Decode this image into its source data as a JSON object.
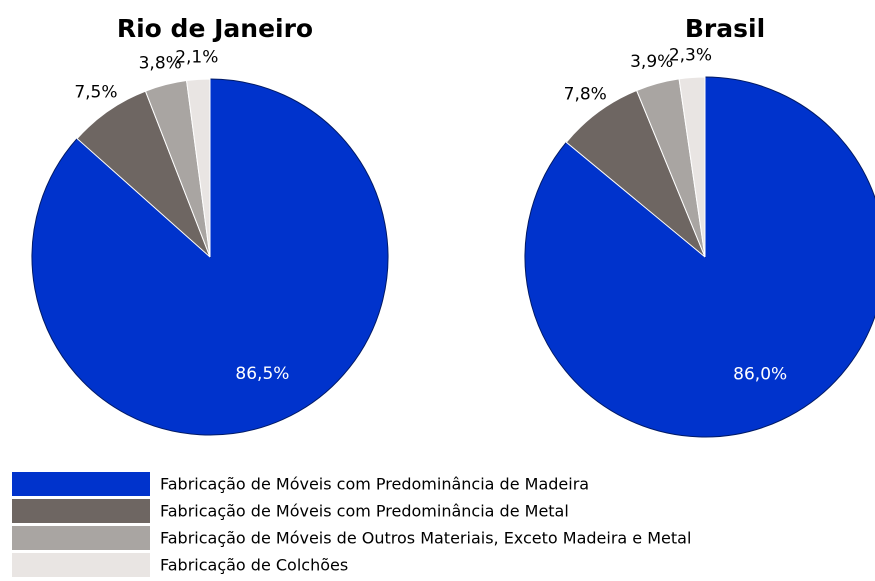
{
  "legend": {
    "categories": [
      "Fabricação de Móveis com Predominância de Madeira",
      "Fabricação de Móveis com Predominância de Metal",
      "Fabricação de Móveis de Outros Materiais, Exceto Madeira e Metal",
      "Fabricação de Colchões"
    ],
    "colors": [
      "#0033cc",
      "#6e6662",
      "#a9a5a2",
      "#e9e5e3"
    ]
  },
  "chart_data": [
    {
      "type": "pie",
      "title": "Rio de Janeiro",
      "values": [
        86.5,
        7.5,
        3.8,
        2.1
      ],
      "value_labels": [
        "86,5%",
        "7,5%",
        "3,8%",
        "2,1%"
      ]
    },
    {
      "type": "pie",
      "title": "Brasil",
      "values": [
        86.0,
        7.8,
        3.9,
        2.3
      ],
      "value_labels": [
        "86,0%",
        "7,8%",
        "3,9%",
        "2,3%"
      ]
    }
  ]
}
